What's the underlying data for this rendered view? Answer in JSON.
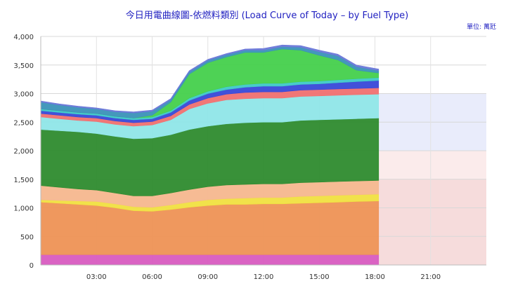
{
  "chart_data": {
    "type": "area",
    "title": "今日用電曲線圖-依燃料類別 (Load Curve of Today – by Fuel Type)",
    "unit_label": "單位: 萬瓩",
    "xlabel": "",
    "ylabel": "",
    "ylim": [
      0,
      4000
    ],
    "xlim": [
      0,
      24
    ],
    "stacked": true,
    "grid": true,
    "legend": "none",
    "y_ticks": [
      "0",
      "500",
      "1,000",
      "1,500",
      "2,000",
      "2,500",
      "3,000",
      "3,500",
      "4,000"
    ],
    "y_tick_values": [
      0,
      500,
      1000,
      1500,
      2000,
      2500,
      3000,
      3500,
      4000
    ],
    "x_ticks": [
      "03:00",
      "06:00",
      "09:00",
      "12:00",
      "15:00",
      "18:00",
      "21:00"
    ],
    "x_tick_values": [
      3,
      6,
      9,
      12,
      15,
      18,
      21
    ],
    "x": [
      0,
      1,
      2,
      3,
      4,
      5,
      6,
      7,
      8,
      9,
      10,
      11,
      12,
      13,
      14,
      15,
      16,
      17,
      18.2
    ],
    "reserve_bands": [
      {
        "from": 0,
        "to": 1500,
        "color": "#f6dcdc"
      },
      {
        "from": 1500,
        "to": 2000,
        "color": "#fbebeb"
      },
      {
        "from": 2000,
        "to": 3000,
        "color": "#e9ecfb"
      }
    ],
    "series": [
      {
        "color": "#d85bc0",
        "values": [
          180,
          180,
          180,
          180,
          180,
          180,
          180,
          180,
          180,
          180,
          180,
          180,
          180,
          180,
          180,
          180,
          180,
          180,
          180
        ]
      },
      {
        "color": "#ee9255",
        "values": [
          920,
          900,
          880,
          860,
          820,
          770,
          760,
          790,
          830,
          860,
          880,
          880,
          890,
          890,
          900,
          910,
          920,
          930,
          940
        ]
      },
      {
        "color": "#f0e040",
        "values": [
          40,
          50,
          60,
          70,
          70,
          70,
          70,
          80,
          90,
          100,
          100,
          110,
          110,
          110,
          120,
          120,
          120,
          120,
          120
        ]
      },
      {
        "color": "#f5b78e",
        "values": [
          250,
          230,
          210,
          200,
          190,
          190,
          200,
          210,
          220,
          230,
          240,
          240,
          240,
          240,
          240,
          240,
          240,
          240,
          240
        ]
      },
      {
        "color": "#2e8b2e",
        "values": [
          980,
          990,
          1000,
          990,
          990,
          1000,
          1010,
          1020,
          1050,
          1060,
          1070,
          1080,
          1080,
          1080,
          1090,
          1090,
          1090,
          1090,
          1090
        ]
      },
      {
        "color": "#8fe6e8",
        "values": [
          220,
          210,
          200,
          210,
          210,
          220,
          230,
          260,
          360,
          400,
          420,
          420,
          420,
          420,
          420,
          420,
          420,
          420,
          420
        ]
      },
      {
        "color": "#f07070",
        "values": [
          60,
          60,
          60,
          60,
          60,
          60,
          60,
          70,
          80,
          90,
          100,
          110,
          110,
          110,
          110,
          110,
          110,
          110,
          110
        ]
      },
      {
        "color": "#3848d8",
        "values": [
          50,
          50,
          50,
          50,
          50,
          50,
          50,
          60,
          70,
          80,
          80,
          90,
          100,
          100,
          100,
          100,
          110,
          120,
          130
        ]
      },
      {
        "color": "#3ec8c8",
        "values": [
          30,
          30,
          30,
          30,
          30,
          30,
          30,
          30,
          40,
          40,
          50,
          50,
          50,
          50,
          50,
          50,
          50,
          50,
          50
        ]
      },
      {
        "color": "#44d04c",
        "values": [
          0,
          0,
          0,
          0,
          0,
          0,
          30,
          150,
          420,
          500,
          520,
          560,
          540,
          600,
          550,
          450,
          350,
          150,
          80
        ]
      },
      {
        "color": "#3a92b8",
        "values": [
          120,
          100,
          90,
          80,
          80,
          90,
          70,
          40,
          40,
          40,
          40,
          40,
          40,
          40,
          50,
          60,
          70,
          60,
          40
        ]
      },
      {
        "color": "#6a78d8",
        "values": [
          20,
          20,
          20,
          20,
          20,
          20,
          20,
          20,
          20,
          20,
          20,
          20,
          30,
          30,
          30,
          30,
          30,
          30,
          30
        ]
      }
    ]
  }
}
